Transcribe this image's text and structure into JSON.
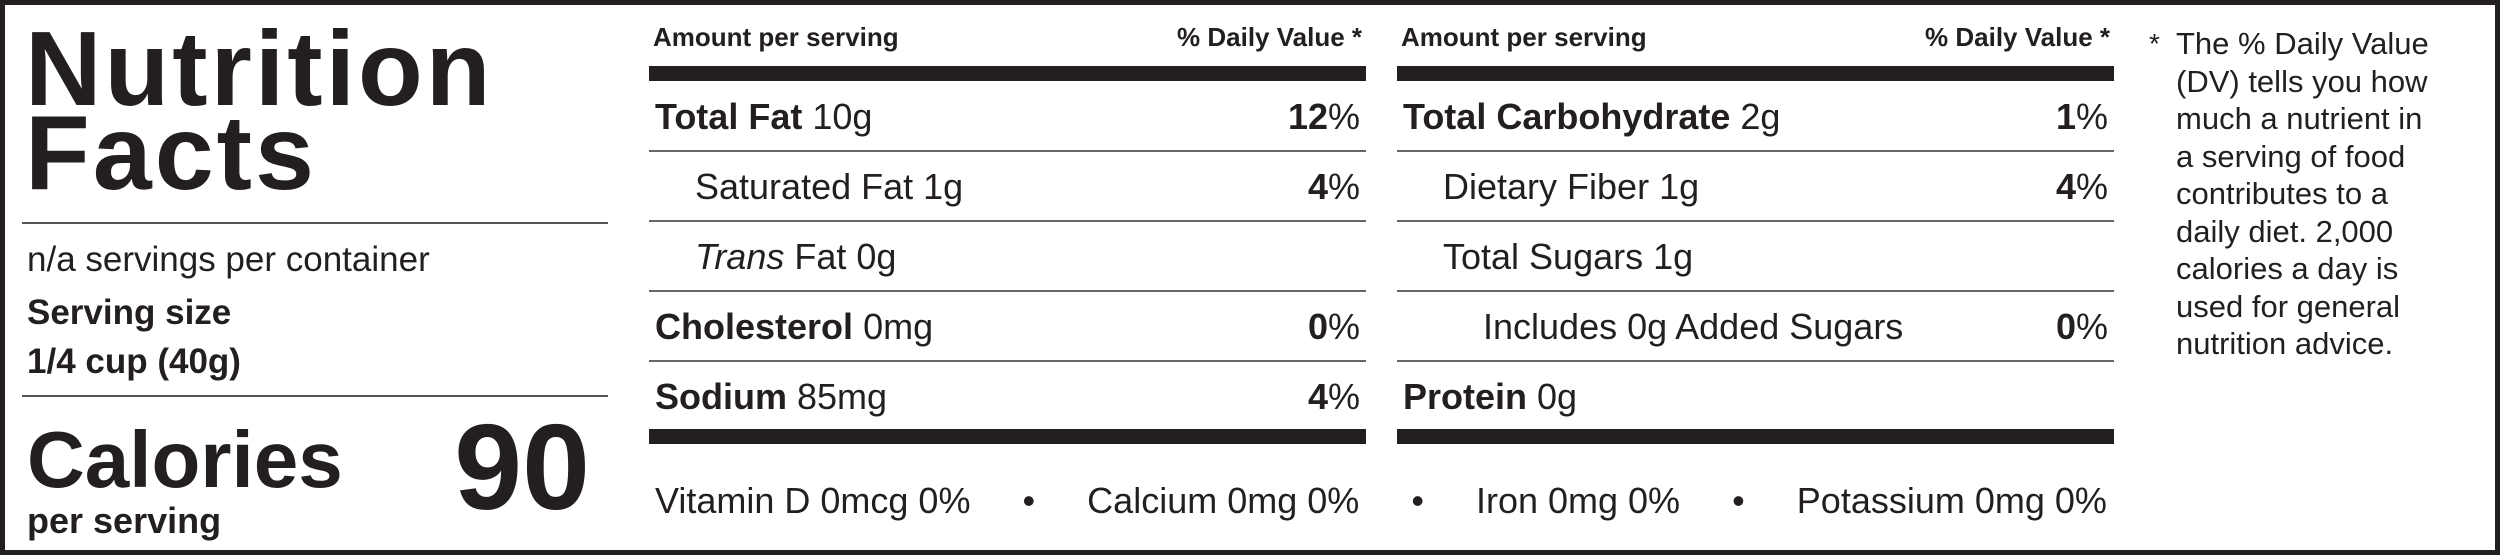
{
  "header": {
    "title_lines": [
      "Nutrition",
      "Facts"
    ]
  },
  "servings_per_container": "n/a servings per container",
  "serving_size_label": "Serving size",
  "serving_size": "1/4 cup (40g)",
  "calories_label": "Calories",
  "calories_sub": "per serving",
  "calories": "90",
  "columns": [
    {
      "header_left": "Amount per serving",
      "header_right": "% Daily Value *",
      "rows": [
        {
          "name": "Total Fat",
          "amount": "10g",
          "dv": "12%",
          "bold": true,
          "indent": 0
        },
        {
          "name": "Saturated Fat",
          "amount": "1g",
          "dv": "4%",
          "bold": false,
          "indent": 1
        },
        {
          "name_italic": "Trans",
          "name": "Fat",
          "amount": "0g",
          "bold": false,
          "indent": 1
        },
        {
          "name": "Cholesterol",
          "amount": "0mg",
          "dv": "0%",
          "bold": true,
          "indent": 0
        },
        {
          "name": "Sodium",
          "amount": "85mg",
          "dv": "4%",
          "bold": true,
          "indent": 0
        }
      ]
    },
    {
      "header_left": "Amount per serving",
      "header_right": "% Daily Value *",
      "rows": [
        {
          "name": "Total Carbohydrate",
          "amount": "2g",
          "dv": "1%",
          "bold": true,
          "indent": 0
        },
        {
          "name": "Dietary Fiber",
          "amount": "1g",
          "dv": "4%",
          "bold": false,
          "indent": 1
        },
        {
          "name": "Total Sugars",
          "amount": "1g",
          "bold": false,
          "indent": 1
        },
        {
          "name": "Includes 0g Added Sugars",
          "dv": "0%",
          "bold": false,
          "indent": 2
        },
        {
          "name": "Protein",
          "amount": "0g",
          "bold": true,
          "indent": 0
        }
      ]
    }
  ],
  "vitamins": [
    "Vitamin D 0mcg 0%",
    "Calcium 0mg 0%",
    "Iron 0mg 0%",
    "Potassium 0mg 0%"
  ],
  "footnote": {
    "mark": "*",
    "lines": [
      "The % Daily Value",
      "(DV) tells you how",
      "much a nutrient in",
      "a serving of food",
      "contributes to a",
      "daily diet. 2,000",
      "calories a day is",
      "used for general",
      "nutrition advice."
    ]
  }
}
